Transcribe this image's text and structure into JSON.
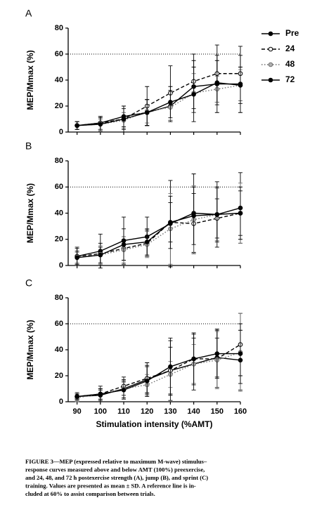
{
  "chart_data": [
    {
      "type": "line",
      "panel_label": "A",
      "ylabel": "MEP/Mmax (%)",
      "legend": "right",
      "x": [
        90,
        100,
        110,
        120,
        130,
        140,
        150,
        160
      ],
      "xlim": [
        88,
        160
      ],
      "xticks": [
        90,
        100,
        110,
        120,
        130,
        140,
        150,
        160
      ],
      "ylim": [
        0,
        80
      ],
      "yticks": [
        0,
        20,
        40,
        60,
        80
      ],
      "reference_line": 60,
      "series": [
        {
          "name": "Pre",
          "color": "#000000",
          "line": "solid",
          "marker_fill": "#000000",
          "values": [
            5,
            7,
            12,
            15,
            20,
            35,
            37,
            37
          ],
          "errors": [
            3,
            5,
            8,
            10,
            12,
            20,
            22,
            22
          ]
        },
        {
          "name": "24",
          "color": "#000000",
          "line": "dashed",
          "marker_fill": "#ffffff",
          "values": [
            5,
            7,
            10,
            20,
            30,
            39,
            45,
            45
          ],
          "errors": [
            3,
            5,
            10,
            15,
            21,
            21,
            22,
            21
          ]
        },
        {
          "name": "48",
          "color": "#707070",
          "line": "dotted",
          "marker_fill": "#b0b0b0",
          "values": [
            5,
            6,
            9,
            16,
            19,
            30,
            33,
            36
          ],
          "errors": [
            3,
            4,
            6,
            9,
            10,
            15,
            10,
            12
          ]
        },
        {
          "name": "72",
          "color": "#000000",
          "line": "solid",
          "marker_fill": "#000000",
          "values": [
            5,
            6,
            10,
            15,
            23,
            29,
            38,
            36
          ],
          "errors": [
            3,
            5,
            8,
            10,
            12,
            21,
            17,
            14
          ]
        }
      ]
    },
    {
      "type": "line",
      "panel_label": "B",
      "ylabel": "MEP/Mmax (%)",
      "x": [
        90,
        100,
        110,
        120,
        130,
        140,
        150,
        160
      ],
      "xlim": [
        88,
        160
      ],
      "xticks": [
        90,
        100,
        110,
        120,
        130,
        140,
        150,
        160
      ],
      "ylim": [
        0,
        80
      ],
      "yticks": [
        0,
        20,
        40,
        60,
        80
      ],
      "reference_line": 60,
      "series": [
        {
          "color": "#000000",
          "line": "solid",
          "marker_fill": "#000000",
          "values": [
            7,
            11,
            19,
            22,
            32,
            40,
            39,
            44
          ],
          "errors": [
            7,
            13,
            18,
            15,
            33,
            30,
            25,
            27
          ]
        },
        {
          "color": "#000000",
          "line": "dashed",
          "marker_fill": "#ffffff",
          "values": [
            7,
            9,
            13,
            17,
            33,
            32,
            36,
            40
          ],
          "errors": [
            6,
            8,
            9,
            10,
            15,
            23,
            15,
            17
          ]
        },
        {
          "color": "#707070",
          "line": "dotted",
          "marker_fill": "#b0b0b0",
          "values": [
            6,
            8,
            12,
            16,
            28,
            35,
            39,
            40
          ],
          "errors": [
            4,
            7,
            10,
            10,
            27,
            26,
            20,
            23
          ]
        },
        {
          "color": "#000000",
          "line": "solid",
          "marker_fill": "#000000",
          "values": [
            6,
            8,
            16,
            18,
            33,
            38,
            39,
            40
          ],
          "errors": [
            5,
            6,
            12,
            10,
            20,
            22,
            21,
            20
          ]
        }
      ]
    },
    {
      "type": "line",
      "panel_label": "C",
      "ylabel": "MEP/Mmax (%)",
      "xlabel": "Stimulation intensity (%AMT)",
      "xtick_labels": true,
      "x": [
        90,
        100,
        110,
        120,
        130,
        140,
        150,
        160
      ],
      "xlim": [
        88,
        160
      ],
      "xticks": [
        90,
        100,
        110,
        120,
        130,
        140,
        150,
        160
      ],
      "ylim": [
        0,
        80
      ],
      "yticks": [
        0,
        20,
        40,
        60,
        80
      ],
      "reference_line": 60,
      "series": [
        {
          "color": "#000000",
          "line": "solid",
          "marker_fill": "#000000",
          "values": [
            4,
            5,
            10,
            17,
            24,
            29,
            34,
            32
          ],
          "errors": [
            2,
            4,
            7,
            10,
            18,
            20,
            15,
            23
          ]
        },
        {
          "color": "#000000",
          "line": "dashed",
          "marker_fill": "#ffffff",
          "values": [
            4,
            6,
            12,
            18,
            24,
            33,
            33,
            44
          ],
          "errors": [
            3,
            6,
            7,
            12,
            23,
            19,
            22,
            24
          ]
        },
        {
          "color": "#707070",
          "line": "dotted",
          "marker_fill": "#b0b0b0",
          "values": [
            3,
            6,
            10,
            13,
            21,
            29,
            32,
            38
          ],
          "errors": [
            3,
            4,
            5,
            8,
            10,
            15,
            22,
            30
          ]
        },
        {
          "color": "#000000",
          "line": "solid",
          "marker_fill": "#000000",
          "values": [
            4,
            6,
            9,
            16,
            27,
            33,
            37,
            37
          ],
          "errors": [
            2,
            4,
            7,
            12,
            22,
            20,
            19,
            23
          ]
        }
      ]
    }
  ],
  "caption": [
    "FIGURE 3—MEP (expressed relative to maximum M-wave) stimulus–",
    "response curves measured above and below AMT (100%) preexercise,",
    "and 24, 48, and 72 h postexercise strength (A), jump (B), and sprint (C)",
    "training. Values are presented as mean ± SD. A reference line is in-",
    "cluded at 60% to assist comparison between trials."
  ]
}
